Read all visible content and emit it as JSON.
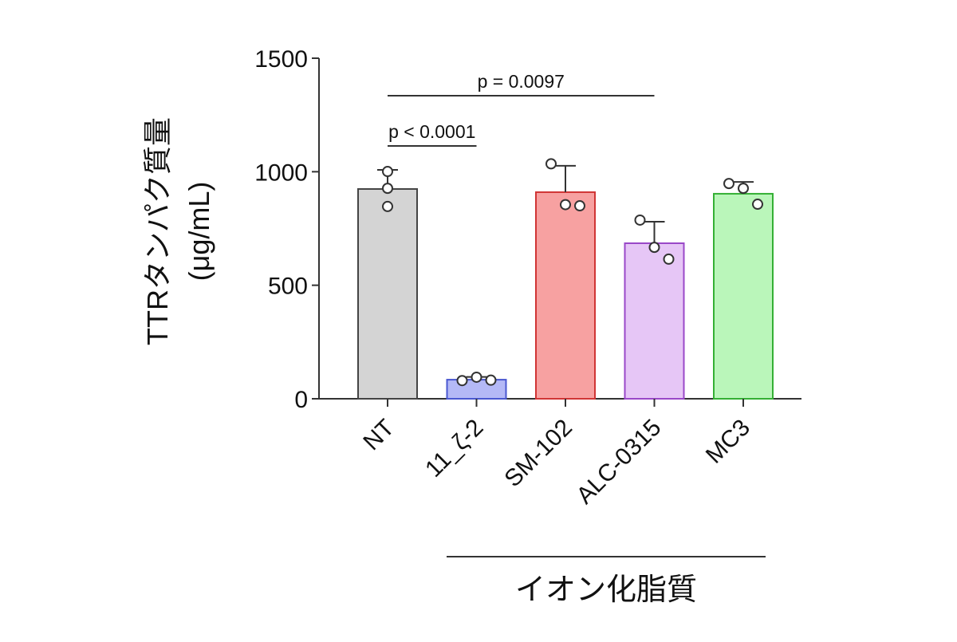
{
  "chart_data": {
    "type": "bar",
    "ylabel": [
      "TTRタンパク質量",
      "(μg/mL)"
    ],
    "categories": [
      "NT",
      "11_ζ-2",
      "SM-102",
      "ALC-0315",
      "MC3"
    ],
    "values": [
      924,
      84,
      910,
      685,
      903
    ],
    "errors": [
      84,
      12,
      116,
      95,
      52
    ],
    "points": [
      [
        1001,
        927,
        847
      ],
      [
        80,
        95,
        82
      ],
      [
        1035,
        855,
        850
      ],
      [
        787,
        667,
        615
      ],
      [
        948,
        927,
        857
      ]
    ],
    "colors": [
      "#d4d4d4",
      "#b4b9f6",
      "#f7a1a1",
      "#e6c6f6",
      "#baf6ba"
    ],
    "edge_colors": [
      "#444444",
      "#4a58d0",
      "#d03535",
      "#9a48c8",
      "#35b035"
    ],
    "ylim": [
      0,
      1500
    ],
    "yticks": [
      0,
      500,
      1000,
      1500
    ],
    "annotations": [
      "p < 0.0001",
      "p = 0.0097"
    ],
    "group_label": "イオン化脂質"
  }
}
